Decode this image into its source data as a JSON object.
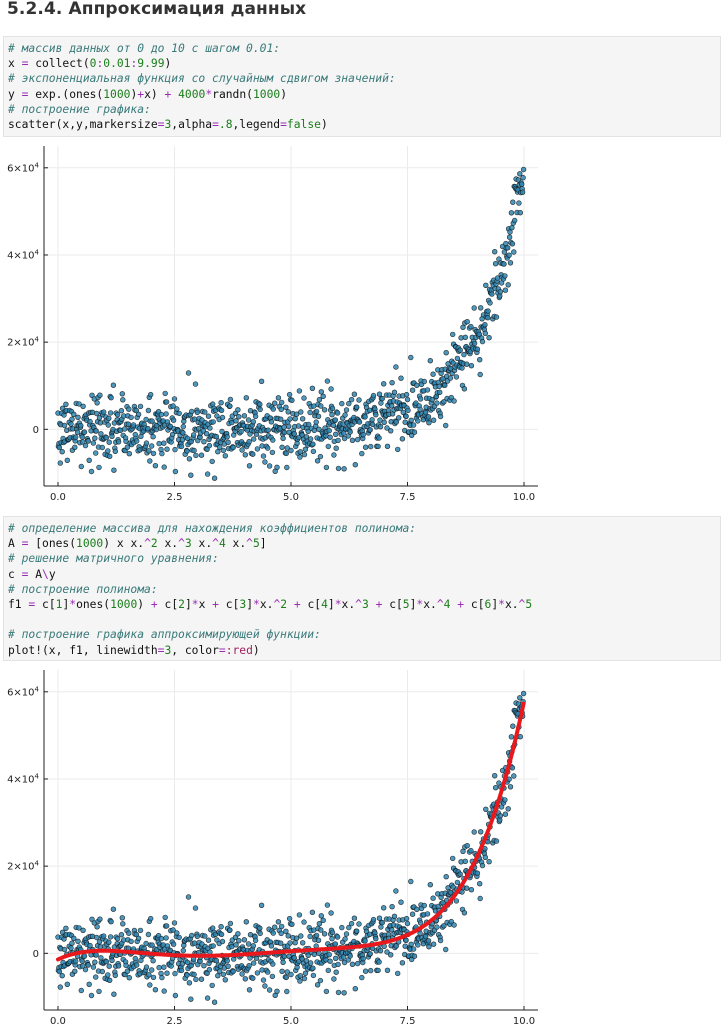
{
  "section_title": "5.2.4. Аппроксимация данных",
  "code_cells": [
    {
      "lines": [
        [
          {
            "t": "# массив данных от 0 до 10 с шагом 0.01:",
            "c": "cm"
          }
        ],
        [
          {
            "t": "x ",
            "c": ""
          },
          {
            "t": "=",
            "c": "op"
          },
          {
            "t": " collect(",
            "c": ""
          },
          {
            "t": "0",
            "c": "num"
          },
          {
            "t": ":",
            "c": "op"
          },
          {
            "t": "0.01",
            "c": "num"
          },
          {
            "t": ":",
            "c": "op"
          },
          {
            "t": "9.99",
            "c": "num"
          },
          {
            "t": ")",
            "c": ""
          }
        ],
        [
          {
            "t": "# экспоненциальная функция со случайным сдвигом значений:",
            "c": "cm"
          }
        ],
        [
          {
            "t": "y ",
            "c": ""
          },
          {
            "t": "=",
            "c": "op"
          },
          {
            "t": " exp.(ones(",
            "c": ""
          },
          {
            "t": "1000",
            "c": "num"
          },
          {
            "t": ")",
            "c": ""
          },
          {
            "t": "+",
            "c": "op"
          },
          {
            "t": "x) ",
            "c": ""
          },
          {
            "t": "+",
            "c": "op"
          },
          {
            "t": " ",
            "c": ""
          },
          {
            "t": "4000",
            "c": "num"
          },
          {
            "t": "*",
            "c": "op"
          },
          {
            "t": "randn(",
            "c": ""
          },
          {
            "t": "1000",
            "c": "num"
          },
          {
            "t": ")",
            "c": ""
          }
        ],
        [
          {
            "t": "# построение графика:",
            "c": "cm"
          }
        ],
        [
          {
            "t": "scatter(x,y,markersize",
            "c": ""
          },
          {
            "t": "=",
            "c": "op"
          },
          {
            "t": "3",
            "c": "num"
          },
          {
            "t": ",alpha",
            "c": ""
          },
          {
            "t": "=",
            "c": "op"
          },
          {
            "t": ".8",
            "c": "num"
          },
          {
            "t": ",legend",
            "c": ""
          },
          {
            "t": "=",
            "c": "op"
          },
          {
            "t": "false",
            "c": "kw"
          },
          {
            "t": ")",
            "c": ""
          }
        ]
      ]
    },
    {
      "lines": [
        [
          {
            "t": "# определение массива для нахождения коэффициентов полинома:",
            "c": "cm"
          }
        ],
        [
          {
            "t": "A ",
            "c": ""
          },
          {
            "t": "=",
            "c": "op"
          },
          {
            "t": " [ones(",
            "c": ""
          },
          {
            "t": "1000",
            "c": "num"
          },
          {
            "t": ") x x.",
            "c": ""
          },
          {
            "t": "^",
            "c": "op"
          },
          {
            "t": "2",
            "c": "num"
          },
          {
            "t": " x.",
            "c": ""
          },
          {
            "t": "^",
            "c": "op"
          },
          {
            "t": "3",
            "c": "num"
          },
          {
            "t": " x.",
            "c": ""
          },
          {
            "t": "^",
            "c": "op"
          },
          {
            "t": "4",
            "c": "num"
          },
          {
            "t": " x.",
            "c": ""
          },
          {
            "t": "^",
            "c": "op"
          },
          {
            "t": "5",
            "c": "num"
          },
          {
            "t": "]",
            "c": ""
          }
        ],
        [
          {
            "t": "# решение матричного уравнения:",
            "c": "cm"
          }
        ],
        [
          {
            "t": "c ",
            "c": ""
          },
          {
            "t": "=",
            "c": "op"
          },
          {
            "t": " A",
            "c": ""
          },
          {
            "t": "\\",
            "c": "op"
          },
          {
            "t": "y",
            "c": ""
          }
        ],
        [
          {
            "t": "# построение полинома:",
            "c": "cm"
          }
        ],
        [
          {
            "t": "f1 ",
            "c": ""
          },
          {
            "t": "=",
            "c": "op"
          },
          {
            "t": " c[",
            "c": ""
          },
          {
            "t": "1",
            "c": "num"
          },
          {
            "t": "]",
            "c": ""
          },
          {
            "t": "*",
            "c": "op"
          },
          {
            "t": "ones(",
            "c": ""
          },
          {
            "t": "1000",
            "c": "num"
          },
          {
            "t": ") ",
            "c": ""
          },
          {
            "t": "+",
            "c": "op"
          },
          {
            "t": " c[",
            "c": ""
          },
          {
            "t": "2",
            "c": "num"
          },
          {
            "t": "]",
            "c": ""
          },
          {
            "t": "*",
            "c": "op"
          },
          {
            "t": "x ",
            "c": ""
          },
          {
            "t": "+",
            "c": "op"
          },
          {
            "t": " c[",
            "c": ""
          },
          {
            "t": "3",
            "c": "num"
          },
          {
            "t": "]",
            "c": ""
          },
          {
            "t": "*",
            "c": "op"
          },
          {
            "t": "x.",
            "c": ""
          },
          {
            "t": "^",
            "c": "op"
          },
          {
            "t": "2",
            "c": "num"
          },
          {
            "t": " ",
            "c": ""
          },
          {
            "t": "+",
            "c": "op"
          },
          {
            "t": " c[",
            "c": ""
          },
          {
            "t": "4",
            "c": "num"
          },
          {
            "t": "]",
            "c": ""
          },
          {
            "t": "*",
            "c": "op"
          },
          {
            "t": "x.",
            "c": ""
          },
          {
            "t": "^",
            "c": "op"
          },
          {
            "t": "3",
            "c": "num"
          },
          {
            "t": " ",
            "c": ""
          },
          {
            "t": "+",
            "c": "op"
          },
          {
            "t": " c[",
            "c": ""
          },
          {
            "t": "5",
            "c": "num"
          },
          {
            "t": "]",
            "c": ""
          },
          {
            "t": "*",
            "c": "op"
          },
          {
            "t": "x.",
            "c": ""
          },
          {
            "t": "^",
            "c": "op"
          },
          {
            "t": "4",
            "c": "num"
          },
          {
            "t": " ",
            "c": ""
          },
          {
            "t": "+",
            "c": "op"
          },
          {
            "t": " c[",
            "c": ""
          },
          {
            "t": "6",
            "c": "num"
          },
          {
            "t": "]",
            "c": ""
          },
          {
            "t": "*",
            "c": "op"
          },
          {
            "t": "x.",
            "c": ""
          },
          {
            "t": "^",
            "c": "op"
          },
          {
            "t": "5",
            "c": "num"
          }
        ],
        [
          {
            "t": "",
            "c": ""
          }
        ],
        [
          {
            "t": "# построение графика аппроксимирующей функции:",
            "c": "cm"
          }
        ],
        [
          {
            "t": "plot!(x, f1, linewidth",
            "c": ""
          },
          {
            "t": "=",
            "c": "op"
          },
          {
            "t": "3",
            "c": "num"
          },
          {
            "t": ", color",
            "c": ""
          },
          {
            "t": "=",
            "c": "op"
          },
          {
            "t": ":red",
            "c": "sym"
          },
          {
            "t": ")",
            "c": ""
          }
        ]
      ]
    }
  ],
  "colors": {
    "marker_fill": "#2f86b3",
    "marker_stroke": "#111111",
    "fit_line": "#e8181c",
    "grid": "#ebebeb",
    "axis": "#222222"
  },
  "chart_data": [
    {
      "type": "scatter",
      "title": "",
      "xlabel": "",
      "ylabel": "",
      "legend": false,
      "grid": true,
      "xlim": [
        -0.3,
        10.3
      ],
      "ylim": [
        -13000,
        65000
      ],
      "x_ticks": [
        0.0,
        2.5,
        5.0,
        7.5,
        10.0
      ],
      "x_tick_labels": [
        "0.0",
        "2.5",
        "5.0",
        "7.5",
        "10.0"
      ],
      "y_ticks": [
        0,
        20000,
        40000,
        60000
      ],
      "y_tick_labels": [
        {
          "m": "0",
          "e": ""
        },
        {
          "m": "2×10",
          "e": "4"
        },
        {
          "m": "4×10",
          "e": "4"
        },
        {
          "m": "6×10",
          "e": "4"
        }
      ],
      "x_range": [
        0,
        9.99
      ],
      "x_step": 0.01,
      "series": [
        {
          "type": "scatter",
          "formula": "exp(1+x) + noise(sd=4000)",
          "noise_sd": 4000,
          "markersize": 3,
          "alpha": 0.8
        }
      ]
    },
    {
      "type": "scatter",
      "title": "",
      "xlabel": "",
      "ylabel": "",
      "legend": false,
      "grid": true,
      "xlim": [
        -0.3,
        10.3
      ],
      "ylim": [
        -13000,
        65000
      ],
      "x_ticks": [
        0.0,
        2.5,
        5.0,
        7.5,
        10.0
      ],
      "x_tick_labels": [
        "0.0",
        "2.5",
        "5.0",
        "7.5",
        "10.0"
      ],
      "y_ticks": [
        0,
        20000,
        40000,
        60000
      ],
      "y_tick_labels": [
        {
          "m": "0",
          "e": ""
        },
        {
          "m": "2×10",
          "e": "4"
        },
        {
          "m": "4×10",
          "e": "4"
        },
        {
          "m": "6×10",
          "e": "4"
        }
      ],
      "x_range": [
        0,
        9.99
      ],
      "x_step": 0.01,
      "series": [
        {
          "type": "scatter",
          "formula": "exp(1+x) + noise(sd=4000)",
          "noise_sd": 4000,
          "markersize": 3,
          "alpha": 0.8
        },
        {
          "type": "line",
          "formula": "degree-5 polynomial least-squares fit",
          "linewidth": 3,
          "color": "red",
          "fit_points": [
            [
              0,
              -2000
            ],
            [
              1,
              -700
            ],
            [
              2,
              -150
            ],
            [
              3,
              150
            ],
            [
              4,
              450
            ],
            [
              5,
              700
            ],
            [
              6,
              1300
            ],
            [
              7,
              3000
            ],
            [
              8,
              9500
            ],
            [
              9,
              26000
            ],
            [
              10,
              58000
            ]
          ]
        }
      ]
    }
  ]
}
